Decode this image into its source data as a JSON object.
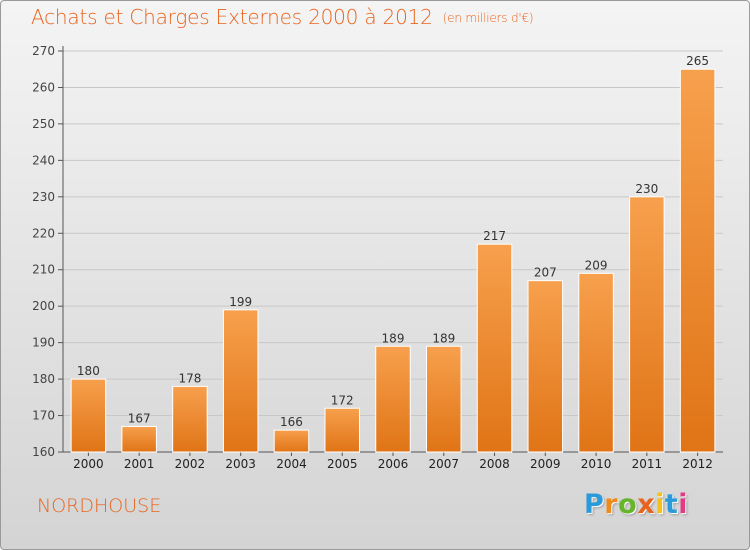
{
  "chart_data": {
    "type": "bar",
    "title": "Achats et Charges Externes 2000 à 2012",
    "subtitle": "(en milliers d'€)",
    "categories": [
      "2000",
      "2001",
      "2002",
      "2003",
      "2004",
      "2005",
      "2006",
      "2007",
      "2008",
      "2009",
      "2010",
      "2011",
      "2012"
    ],
    "values": [
      180,
      167,
      178,
      199,
      166,
      172,
      189,
      189,
      217,
      207,
      209,
      230,
      265
    ],
    "ylim": [
      160,
      270
    ],
    "yticks": [
      160,
      170,
      180,
      190,
      200,
      210,
      220,
      230,
      240,
      250,
      260,
      270
    ],
    "xlabel": "",
    "ylabel": "",
    "grid": true,
    "bar_color_light": "#f7a04d",
    "bar_color_dark": "#e07416"
  },
  "location": "NORDHOUSE",
  "brand": {
    "letters": [
      "P",
      "r",
      "o",
      "x",
      "i",
      "t",
      "i"
    ],
    "colors": [
      "#2a9ad8",
      "#f08a1c",
      "#67b52a",
      "#e8641e",
      "#f2c21a",
      "#2a9ad8",
      "#e23a83"
    ]
  },
  "colors": {
    "accent": "#e8641e",
    "grid": "#c8c8c8",
    "axis": "#555555"
  }
}
